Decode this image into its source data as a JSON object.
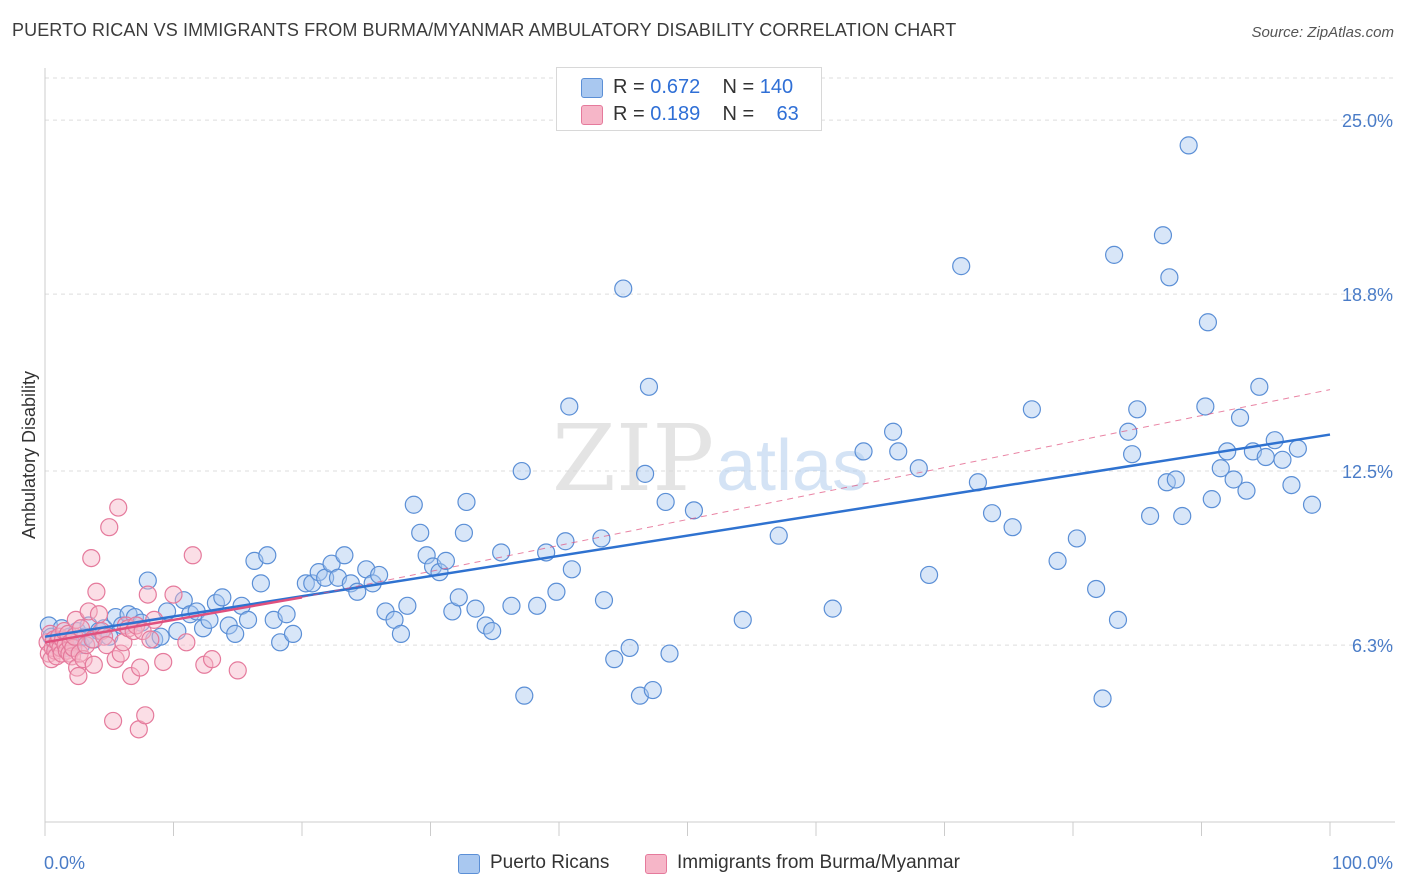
{
  "title": "PUERTO RICAN VS IMMIGRANTS FROM BURMA/MYANMAR AMBULATORY DISABILITY CORRELATION CHART",
  "source": "Source: ZipAtlas.com",
  "watermark": {
    "zip": "ZIP",
    "atlas": "atlas"
  },
  "legend": {
    "rows": [
      {
        "r_label": "R = ",
        "r_value": "0.672",
        "n_label": "N = ",
        "n_value": "140"
      },
      {
        "r_label": "R = ",
        "r_value": "0.189",
        "n_label": "N = ",
        "n_value": "63"
      }
    ]
  },
  "colors": {
    "blue_fill": "#a9c8f0",
    "blue_stroke": "#5b8fd6",
    "blue_line": "#2f72d0",
    "pink_fill": "#f6b6c8",
    "pink_stroke": "#e57a9c",
    "pink_line": "#e0507e",
    "grid": "#dddddd",
    "tick_text": "#4a7cc7"
  },
  "chart_data": {
    "type": "scatter",
    "title": "PUERTO RICAN VS IMMIGRANTS FROM BURMA/MYANMAR AMBULATORY DISABILITY CORRELATION CHART",
    "xlabel": "",
    "ylabel": "Ambulatory Disability",
    "xlim": [
      0,
      100
    ],
    "ylim": [
      0,
      26.5
    ],
    "x_tick_labels": [
      "0.0%",
      "100.0%"
    ],
    "y_ticks": [
      6.3,
      12.5,
      18.8,
      25.0
    ],
    "y_tick_labels": [
      "6.3%",
      "12.5%",
      "18.8%",
      "25.0%"
    ],
    "grid": "horizontal dashed",
    "legend_position": "bottom-center",
    "series": [
      {
        "name": "Puerto Ricans",
        "r": 0.672,
        "n": 140,
        "trend": {
          "x0": 0,
          "y0": 6.6,
          "x1": 100,
          "y1": 13.8
        },
        "points": [
          [
            0.3,
            7.0
          ],
          [
            0.5,
            6.6
          ],
          [
            0.8,
            6.3
          ],
          [
            1.0,
            6.5
          ],
          [
            1.3,
            6.9
          ],
          [
            1.6,
            6.2
          ],
          [
            1.9,
            6.6
          ],
          [
            2.2,
            6.4
          ],
          [
            2.5,
            6.8
          ],
          [
            2.8,
            6.3
          ],
          [
            3.1,
            6.6
          ],
          [
            3.4,
            7.0
          ],
          [
            3.8,
            6.5
          ],
          [
            4.2,
            6.8
          ],
          [
            4.6,
            6.9
          ],
          [
            5.0,
            6.6
          ],
          [
            5.5,
            7.3
          ],
          [
            6.0,
            7.0
          ],
          [
            6.5,
            7.4
          ],
          [
            7.0,
            7.3
          ],
          [
            7.5,
            7.1
          ],
          [
            8.0,
            8.6
          ],
          [
            8.5,
            6.5
          ],
          [
            9.0,
            6.6
          ],
          [
            9.5,
            7.5
          ],
          [
            10.3,
            6.8
          ],
          [
            10.8,
            7.9
          ],
          [
            11.3,
            7.4
          ],
          [
            11.8,
            7.5
          ],
          [
            12.3,
            6.9
          ],
          [
            12.8,
            7.2
          ],
          [
            13.3,
            7.8
          ],
          [
            13.8,
            8.0
          ],
          [
            14.3,
            7.0
          ],
          [
            14.8,
            6.7
          ],
          [
            15.3,
            7.7
          ],
          [
            15.8,
            7.2
          ],
          [
            16.3,
            9.3
          ],
          [
            16.8,
            8.5
          ],
          [
            17.3,
            9.5
          ],
          [
            17.8,
            7.2
          ],
          [
            18.3,
            6.4
          ],
          [
            18.8,
            7.4
          ],
          [
            19.3,
            6.7
          ],
          [
            20.3,
            8.5
          ],
          [
            20.8,
            8.5
          ],
          [
            21.3,
            8.9
          ],
          [
            21.8,
            8.7
          ],
          [
            22.3,
            9.2
          ],
          [
            22.8,
            8.7
          ],
          [
            23.3,
            9.5
          ],
          [
            23.8,
            8.5
          ],
          [
            24.3,
            8.2
          ],
          [
            25.0,
            9.0
          ],
          [
            25.5,
            8.5
          ],
          [
            26.0,
            8.8
          ],
          [
            26.5,
            7.5
          ],
          [
            27.2,
            7.2
          ],
          [
            27.7,
            6.7
          ],
          [
            28.2,
            7.7
          ],
          [
            28.7,
            11.3
          ],
          [
            29.2,
            10.3
          ],
          [
            29.7,
            9.5
          ],
          [
            30.2,
            9.1
          ],
          [
            30.7,
            8.9
          ],
          [
            31.2,
            9.3
          ],
          [
            31.7,
            7.5
          ],
          [
            32.2,
            8.0
          ],
          [
            32.6,
            10.3
          ],
          [
            32.8,
            11.4
          ],
          [
            33.5,
            7.6
          ],
          [
            34.3,
            7.0
          ],
          [
            34.8,
            6.8
          ],
          [
            35.5,
            9.6
          ],
          [
            36.3,
            7.7
          ],
          [
            37.1,
            12.5
          ],
          [
            37.3,
            4.5
          ],
          [
            38.3,
            7.7
          ],
          [
            39.0,
            9.6
          ],
          [
            39.8,
            8.2
          ],
          [
            40.5,
            10.0
          ],
          [
            40.8,
            14.8
          ],
          [
            41.0,
            9.0
          ],
          [
            43.3,
            10.1
          ],
          [
            43.5,
            7.9
          ],
          [
            44.3,
            5.8
          ],
          [
            45.0,
            19.0
          ],
          [
            45.5,
            6.2
          ],
          [
            46.3,
            4.5
          ],
          [
            46.7,
            12.4
          ],
          [
            47.0,
            15.5
          ],
          [
            47.3,
            4.7
          ],
          [
            48.3,
            11.4
          ],
          [
            48.6,
            6.0
          ],
          [
            50.5,
            11.1
          ],
          [
            54.3,
            7.2
          ],
          [
            57.1,
            10.2
          ],
          [
            61.3,
            7.6
          ],
          [
            63.7,
            13.2
          ],
          [
            66.0,
            13.9
          ],
          [
            66.4,
            13.2
          ],
          [
            68.0,
            12.6
          ],
          [
            68.8,
            8.8
          ],
          [
            71.3,
            19.8
          ],
          [
            72.6,
            12.1
          ],
          [
            73.7,
            11.0
          ],
          [
            75.3,
            10.5
          ],
          [
            76.8,
            14.7
          ],
          [
            78.8,
            9.3
          ],
          [
            80.3,
            10.1
          ],
          [
            81.8,
            8.3
          ],
          [
            82.3,
            4.4
          ],
          [
            83.2,
            20.2
          ],
          [
            83.5,
            7.2
          ],
          [
            84.3,
            13.9
          ],
          [
            84.6,
            13.1
          ],
          [
            85.0,
            14.7
          ],
          [
            86.0,
            10.9
          ],
          [
            87.0,
            20.9
          ],
          [
            87.3,
            12.1
          ],
          [
            87.5,
            19.4
          ],
          [
            88.0,
            12.2
          ],
          [
            88.5,
            10.9
          ],
          [
            89.0,
            24.1
          ],
          [
            90.3,
            14.8
          ],
          [
            90.5,
            17.8
          ],
          [
            90.8,
            11.5
          ],
          [
            91.5,
            12.6
          ],
          [
            92.0,
            13.2
          ],
          [
            92.5,
            12.2
          ],
          [
            93.0,
            14.4
          ],
          [
            93.5,
            11.8
          ],
          [
            94.0,
            13.2
          ],
          [
            94.5,
            15.5
          ],
          [
            95.0,
            13.0
          ],
          [
            95.7,
            13.6
          ],
          [
            96.3,
            12.9
          ],
          [
            97.0,
            12.0
          ],
          [
            97.5,
            13.3
          ],
          [
            98.6,
            11.3
          ]
        ]
      },
      {
        "name": "Immigrants from Burma/Myanmar",
        "r": 0.189,
        "n": 63,
        "trend": {
          "x0": 0,
          "y0": 6.4,
          "x1": 20,
          "y1": 8.0,
          "dashed_extension_to": {
            "x": 100,
            "y": 15.4
          }
        },
        "points": [
          [
            0.2,
            6.4
          ],
          [
            0.3,
            6.0
          ],
          [
            0.4,
            6.7
          ],
          [
            0.5,
            5.8
          ],
          [
            0.6,
            6.2
          ],
          [
            0.7,
            6.5
          ],
          [
            0.8,
            6.1
          ],
          [
            0.9,
            5.9
          ],
          [
            1.0,
            6.4
          ],
          [
            1.1,
            6.6
          ],
          [
            1.2,
            6.2
          ],
          [
            1.3,
            6.0
          ],
          [
            1.4,
            6.5
          ],
          [
            1.5,
            6.8
          ],
          [
            1.6,
            6.3
          ],
          [
            1.7,
            6.1
          ],
          [
            1.8,
            6.7
          ],
          [
            1.9,
            6.0
          ],
          [
            2.0,
            6.4
          ],
          [
            2.1,
            5.9
          ],
          [
            2.2,
            6.2
          ],
          [
            2.3,
            6.6
          ],
          [
            2.4,
            7.2
          ],
          [
            2.5,
            5.5
          ],
          [
            2.6,
            5.2
          ],
          [
            2.7,
            6.0
          ],
          [
            2.8,
            6.9
          ],
          [
            3.0,
            5.8
          ],
          [
            3.2,
            6.3
          ],
          [
            3.4,
            7.5
          ],
          [
            3.6,
            9.4
          ],
          [
            3.7,
            6.5
          ],
          [
            3.8,
            5.6
          ],
          [
            4.0,
            8.2
          ],
          [
            4.2,
            7.4
          ],
          [
            4.4,
            6.8
          ],
          [
            4.6,
            6.6
          ],
          [
            4.8,
            6.3
          ],
          [
            5.0,
            10.5
          ],
          [
            5.3,
            3.6
          ],
          [
            5.5,
            5.8
          ],
          [
            5.7,
            11.2
          ],
          [
            5.9,
            6.0
          ],
          [
            6.1,
            6.4
          ],
          [
            6.3,
            7.0
          ],
          [
            6.5,
            6.9
          ],
          [
            6.7,
            5.2
          ],
          [
            6.9,
            6.8
          ],
          [
            7.1,
            7.0
          ],
          [
            7.3,
            3.3
          ],
          [
            7.4,
            5.5
          ],
          [
            7.6,
            6.8
          ],
          [
            7.8,
            3.8
          ],
          [
            8.0,
            8.1
          ],
          [
            8.2,
            6.5
          ],
          [
            8.5,
            7.2
          ],
          [
            9.2,
            5.7
          ],
          [
            10.0,
            8.1
          ],
          [
            11.0,
            6.4
          ],
          [
            11.5,
            9.5
          ],
          [
            12.4,
            5.6
          ],
          [
            13.0,
            5.8
          ],
          [
            15.0,
            5.4
          ]
        ]
      }
    ]
  },
  "bottom_legend": [
    {
      "label": "Puerto Ricans"
    },
    {
      "label": "Immigrants from Burma/Myanmar"
    }
  ]
}
